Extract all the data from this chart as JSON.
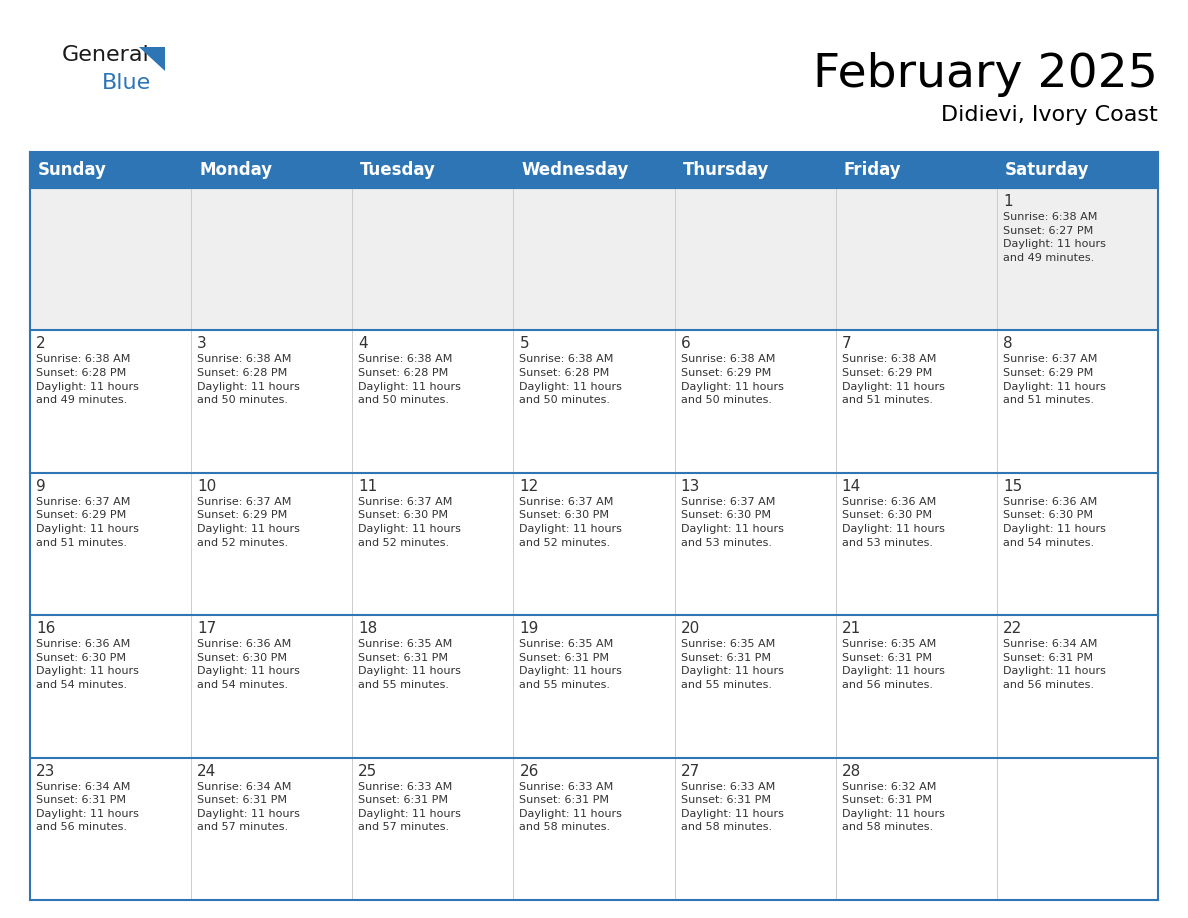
{
  "title": "February 2025",
  "subtitle": "Didievi, Ivory Coast",
  "header_bg": "#2E75B6",
  "header_text_color": "#FFFFFF",
  "border_color": "#2E75B6",
  "grid_line_color": "#4472C4",
  "cell_border_color": "#cccccc",
  "week1_bg": "#EFEFEF",
  "cell_bg": "#FFFFFF",
  "day_headers": [
    "Sunday",
    "Monday",
    "Tuesday",
    "Wednesday",
    "Thursday",
    "Friday",
    "Saturday"
  ],
  "weeks": [
    [
      {
        "day": "",
        "info": ""
      },
      {
        "day": "",
        "info": ""
      },
      {
        "day": "",
        "info": ""
      },
      {
        "day": "",
        "info": ""
      },
      {
        "day": "",
        "info": ""
      },
      {
        "day": "",
        "info": ""
      },
      {
        "day": "1",
        "info": "Sunrise: 6:38 AM\nSunset: 6:27 PM\nDaylight: 11 hours\nand 49 minutes."
      }
    ],
    [
      {
        "day": "2",
        "info": "Sunrise: 6:38 AM\nSunset: 6:28 PM\nDaylight: 11 hours\nand 49 minutes."
      },
      {
        "day": "3",
        "info": "Sunrise: 6:38 AM\nSunset: 6:28 PM\nDaylight: 11 hours\nand 50 minutes."
      },
      {
        "day": "4",
        "info": "Sunrise: 6:38 AM\nSunset: 6:28 PM\nDaylight: 11 hours\nand 50 minutes."
      },
      {
        "day": "5",
        "info": "Sunrise: 6:38 AM\nSunset: 6:28 PM\nDaylight: 11 hours\nand 50 minutes."
      },
      {
        "day": "6",
        "info": "Sunrise: 6:38 AM\nSunset: 6:29 PM\nDaylight: 11 hours\nand 50 minutes."
      },
      {
        "day": "7",
        "info": "Sunrise: 6:38 AM\nSunset: 6:29 PM\nDaylight: 11 hours\nand 51 minutes."
      },
      {
        "day": "8",
        "info": "Sunrise: 6:37 AM\nSunset: 6:29 PM\nDaylight: 11 hours\nand 51 minutes."
      }
    ],
    [
      {
        "day": "9",
        "info": "Sunrise: 6:37 AM\nSunset: 6:29 PM\nDaylight: 11 hours\nand 51 minutes."
      },
      {
        "day": "10",
        "info": "Sunrise: 6:37 AM\nSunset: 6:29 PM\nDaylight: 11 hours\nand 52 minutes."
      },
      {
        "day": "11",
        "info": "Sunrise: 6:37 AM\nSunset: 6:30 PM\nDaylight: 11 hours\nand 52 minutes."
      },
      {
        "day": "12",
        "info": "Sunrise: 6:37 AM\nSunset: 6:30 PM\nDaylight: 11 hours\nand 52 minutes."
      },
      {
        "day": "13",
        "info": "Sunrise: 6:37 AM\nSunset: 6:30 PM\nDaylight: 11 hours\nand 53 minutes."
      },
      {
        "day": "14",
        "info": "Sunrise: 6:36 AM\nSunset: 6:30 PM\nDaylight: 11 hours\nand 53 minutes."
      },
      {
        "day": "15",
        "info": "Sunrise: 6:36 AM\nSunset: 6:30 PM\nDaylight: 11 hours\nand 54 minutes."
      }
    ],
    [
      {
        "day": "16",
        "info": "Sunrise: 6:36 AM\nSunset: 6:30 PM\nDaylight: 11 hours\nand 54 minutes."
      },
      {
        "day": "17",
        "info": "Sunrise: 6:36 AM\nSunset: 6:30 PM\nDaylight: 11 hours\nand 54 minutes."
      },
      {
        "day": "18",
        "info": "Sunrise: 6:35 AM\nSunset: 6:31 PM\nDaylight: 11 hours\nand 55 minutes."
      },
      {
        "day": "19",
        "info": "Sunrise: 6:35 AM\nSunset: 6:31 PM\nDaylight: 11 hours\nand 55 minutes."
      },
      {
        "day": "20",
        "info": "Sunrise: 6:35 AM\nSunset: 6:31 PM\nDaylight: 11 hours\nand 55 minutes."
      },
      {
        "day": "21",
        "info": "Sunrise: 6:35 AM\nSunset: 6:31 PM\nDaylight: 11 hours\nand 56 minutes."
      },
      {
        "day": "22",
        "info": "Sunrise: 6:34 AM\nSunset: 6:31 PM\nDaylight: 11 hours\nand 56 minutes."
      }
    ],
    [
      {
        "day": "23",
        "info": "Sunrise: 6:34 AM\nSunset: 6:31 PM\nDaylight: 11 hours\nand 56 minutes."
      },
      {
        "day": "24",
        "info": "Sunrise: 6:34 AM\nSunset: 6:31 PM\nDaylight: 11 hours\nand 57 minutes."
      },
      {
        "day": "25",
        "info": "Sunrise: 6:33 AM\nSunset: 6:31 PM\nDaylight: 11 hours\nand 57 minutes."
      },
      {
        "day": "26",
        "info": "Sunrise: 6:33 AM\nSunset: 6:31 PM\nDaylight: 11 hours\nand 58 minutes."
      },
      {
        "day": "27",
        "info": "Sunrise: 6:33 AM\nSunset: 6:31 PM\nDaylight: 11 hours\nand 58 minutes."
      },
      {
        "day": "28",
        "info": "Sunrise: 6:32 AM\nSunset: 6:31 PM\nDaylight: 11 hours\nand 58 minutes."
      },
      {
        "day": "",
        "info": ""
      }
    ]
  ],
  "logo_general_color": "#1a1a1a",
  "logo_blue_color": "#2E75B6",
  "title_fontsize": 34,
  "subtitle_fontsize": 16,
  "day_header_fontsize": 12,
  "day_num_fontsize": 11,
  "cell_text_fontsize": 8.0
}
